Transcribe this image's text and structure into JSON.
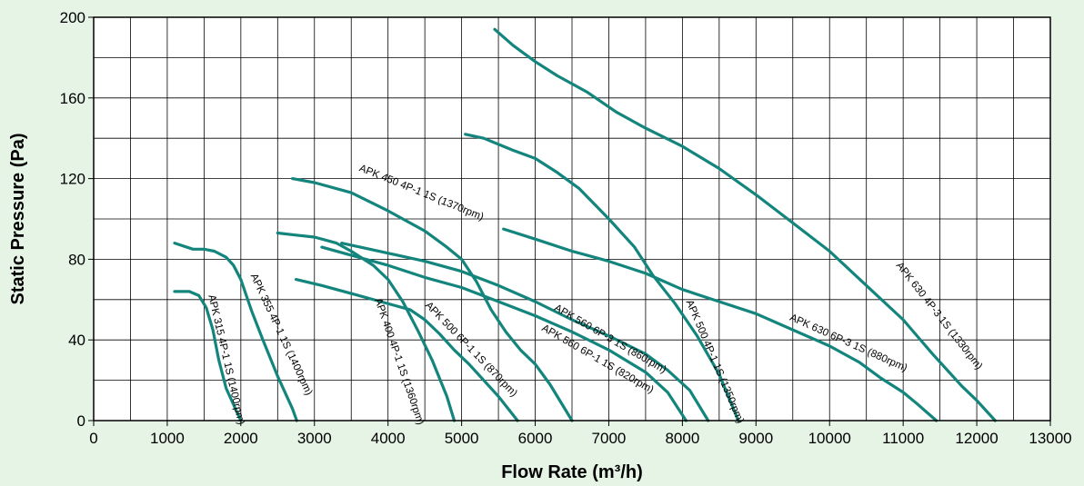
{
  "chart_data": {
    "type": "line",
    "title": "",
    "xlabel": "Flow Rate (m³/h)",
    "ylabel": "Static Pressure (Pa)",
    "xlim": [
      0,
      13000
    ],
    "ylim": [
      0,
      200
    ],
    "x_ticks": [
      "0",
      "1000",
      "2000",
      "3000",
      "4000",
      "5000",
      "6000",
      "7000",
      "8000",
      "9000",
      "10000",
      "11000",
      "12000",
      "13000"
    ],
    "y_ticks": [
      "0",
      "40",
      "80",
      "120",
      "160",
      "200"
    ],
    "x_grid_step": 500,
    "y_grid_step": 20,
    "grid": true,
    "line_color": "#13857d",
    "series": [
      {
        "name": "APK 315 4P-1 1S (1400rpm)",
        "x": [
          1100,
          1300,
          1430,
          1530,
          1620,
          1700,
          1800,
          2000
        ],
        "y": [
          64,
          64,
          62,
          56,
          45,
          30,
          16,
          0
        ]
      },
      {
        "name": "APK 355 4P-1 1S (1400rpm)",
        "x": [
          1100,
          1350,
          1500,
          1640,
          1800,
          1900,
          2000,
          2150,
          2300,
          2500,
          2700,
          2760
        ],
        "y": [
          88,
          85,
          85,
          84,
          81,
          77,
          70,
          54,
          40,
          22,
          6,
          0
        ]
      },
      {
        "name": "APK 400 4P-1 1S (1360rpm)",
        "x": [
          2500,
          2750,
          3000,
          3300,
          3500,
          3800,
          4000,
          4200,
          4400,
          4600,
          4800,
          4900
        ],
        "y": [
          93,
          92,
          91,
          88,
          84,
          77,
          70,
          59,
          45,
          30,
          12,
          0
        ]
      },
      {
        "name": "APK 450 4P-1 1S (1370rpm)",
        "x": [
          2700,
          3000,
          3500,
          4000,
          4500,
          4800,
          5000,
          5200,
          5400,
          5600,
          5800,
          6000,
          6200,
          6500
        ],
        "y": [
          120,
          118,
          113,
          104,
          94,
          86,
          80,
          69,
          55,
          44,
          35,
          28,
          18,
          0
        ]
      },
      {
        "name": "APK 500 6P-1 1S (870rpm)",
        "x": [
          2750,
          3100,
          3500,
          3900,
          4100,
          4300,
          4500,
          4700,
          4900,
          5100,
          5300,
          5500,
          5760
        ],
        "y": [
          70,
          67,
          63,
          59,
          57,
          55,
          50,
          43,
          35,
          28,
          20,
          12,
          0
        ]
      },
      {
        "name": "APK 560 6P-1 1S (820rpm)",
        "x": [
          3100,
          3500,
          4000,
          4500,
          5000,
          5500,
          6000,
          6500,
          7000,
          7500,
          7800,
          8050
        ],
        "y": [
          86,
          82,
          77,
          71,
          66,
          59,
          52,
          44,
          35,
          24,
          14,
          0
        ]
      },
      {
        "name": "APK 560 6P-3 1S (860rpm)",
        "x": [
          3370,
          4000,
          4500,
          5000,
          5500,
          6000,
          6500,
          7000,
          7500,
          7800,
          8100,
          8350
        ],
        "y": [
          88,
          83,
          79,
          74,
          67,
          59,
          50,
          42,
          33,
          25,
          15,
          0
        ]
      },
      {
        "name": "APK 500 4P-1 1S (1350rpm)",
        "x": [
          5050,
          5300,
          5700,
          6000,
          6300,
          6600,
          7000,
          7350,
          7600,
          7900,
          8200,
          8500,
          8760
        ],
        "y": [
          142,
          140,
          134,
          130,
          123,
          115,
          100,
          86,
          72,
          58,
          42,
          23,
          0
        ]
      },
      {
        "name": "APK 630 6P-3 1S (880rpm)",
        "x": [
          5570,
          6000,
          6500,
          7000,
          7500,
          8000,
          8500,
          9000,
          9500,
          10000,
          10400,
          10700,
          11000,
          11200,
          11450
        ],
        "y": [
          95,
          90,
          84,
          79,
          73,
          65,
          59,
          53,
          45,
          37,
          29,
          21,
          14,
          8,
          0
        ]
      },
      {
        "name": "APK 630 4P-3 1S (1330rpm)",
        "x": [
          5450,
          5700,
          6000,
          6300,
          6700,
          7100,
          7500,
          8000,
          8500,
          9000,
          9500,
          10000,
          10500,
          11000,
          11400,
          11800,
          12000,
          12250
        ],
        "y": [
          194,
          186,
          178,
          171,
          163,
          153,
          145,
          136,
          125,
          112,
          98,
          84,
          67,
          50,
          33,
          17,
          10,
          0
        ]
      }
    ],
    "annotations": [
      {
        "text": "APK 315 4P-1 1S (1400rpm)"
      },
      {
        "text": "APK 355 4P-1 1S (1400rpm)"
      },
      {
        "text": "APK 400 4P-1 1S (1360rpm)"
      },
      {
        "text": "APK 450 4P-1 1S (1370rpm)"
      },
      {
        "text": "APK 500 6P-1 1S (870rpm)"
      },
      {
        "text": "APK 560 6P-1 1S (820rpm)"
      },
      {
        "text": "APK 560 6P-3 1S (860rpm)"
      },
      {
        "text": "APK 500 4P-1 1S (1350rpm)"
      },
      {
        "text": "APK 630 6P-3 1S (880rpm)"
      },
      {
        "text": "APK 630 4P-3 1S (1330rpm)"
      }
    ]
  }
}
